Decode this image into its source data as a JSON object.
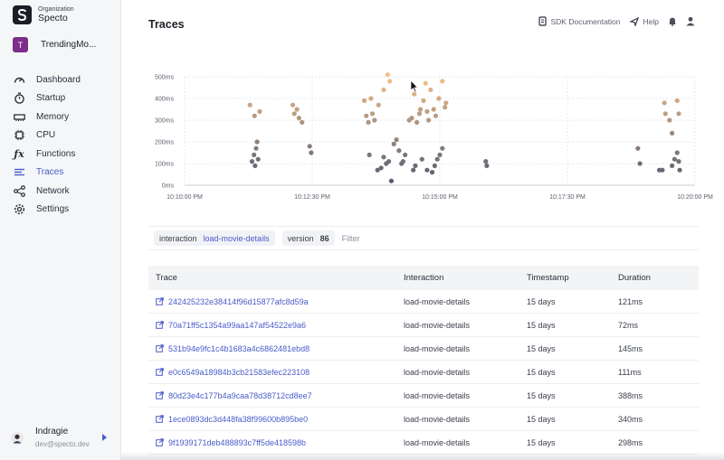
{
  "organization": {
    "caption": "Organization",
    "name": "Specto"
  },
  "app": {
    "initial": "T",
    "name": "TrendingMo..."
  },
  "nav": [
    {
      "label": "Dashboard",
      "icon": "gauge-icon"
    },
    {
      "label": "Startup",
      "icon": "stopwatch-icon"
    },
    {
      "label": "Memory",
      "icon": "memory-icon"
    },
    {
      "label": "CPU",
      "icon": "cpu-icon"
    },
    {
      "label": "Functions",
      "icon": "function-icon"
    },
    {
      "label": "Traces",
      "icon": "list-icon",
      "active": true
    },
    {
      "label": "Network",
      "icon": "network-icon"
    },
    {
      "label": "Settings",
      "icon": "gear-icon"
    }
  ],
  "user": {
    "name": "Indragie",
    "email": "dev@specto.dev"
  },
  "header": {
    "title": "Traces",
    "sdk_docs": "SDK Documentation",
    "help": "Help"
  },
  "filters": {
    "interaction_key": "interaction",
    "interaction_value": "load-movie-details",
    "version_key": "version",
    "version_value": "86",
    "placeholder": "Filter"
  },
  "table": {
    "columns": [
      "Trace",
      "Interaction",
      "Timestamp",
      "Duration"
    ],
    "rows": [
      {
        "trace": "242425232e38414f96d15877afc8d59a",
        "interaction": "load-movie-details",
        "timestamp": "15 days",
        "duration": "121ms"
      },
      {
        "trace": "70a71ff5c1354a99aa147af54522e9a6",
        "interaction": "load-movie-details",
        "timestamp": "15 days",
        "duration": "72ms"
      },
      {
        "trace": "531b94e9fc1c4b1683a4c6862481ebd8",
        "interaction": "load-movie-details",
        "timestamp": "15 days",
        "duration": "145ms"
      },
      {
        "trace": "e0c6549a18984b3cb21583efec223108",
        "interaction": "load-movie-details",
        "timestamp": "15 days",
        "duration": "111ms"
      },
      {
        "trace": "80d23e4c177b4a9caa78d38712cd8ee7",
        "interaction": "load-movie-details",
        "timestamp": "15 days",
        "duration": "388ms"
      },
      {
        "trace": "1ece0893dc3d448fa38f99600b895be0",
        "interaction": "load-movie-details",
        "timestamp": "15 days",
        "duration": "340ms"
      },
      {
        "trace": "9f1939171deb488893c7ff5de418598b",
        "interaction": "load-movie-details",
        "timestamp": "15 days",
        "duration": "298ms"
      }
    ]
  },
  "chart_data": {
    "type": "scatter",
    "title": "",
    "xlabel": "",
    "ylabel": "",
    "x_ticks": [
      "10:10:00 PM",
      "10:12:30 PM",
      "10:15:00 PM",
      "10:17:30 PM",
      "10:20:00 PM"
    ],
    "y_ticks": [
      "0ms",
      "100ms",
      "200ms",
      "300ms",
      "400ms",
      "500ms"
    ],
    "x_domain_minutes": [
      0,
      10
    ],
    "ylim": [
      0,
      500
    ],
    "grid": true,
    "color_low": "#4e5870",
    "color_high": "#f3c08a",
    "points": [
      [
        1.28,
        370
      ],
      [
        1.37,
        320
      ],
      [
        1.47,
        340
      ],
      [
        1.32,
        110
      ],
      [
        1.38,
        90
      ],
      [
        1.36,
        140
      ],
      [
        1.42,
        200
      ],
      [
        1.4,
        170
      ],
      [
        1.44,
        120
      ],
      [
        2.12,
        370
      ],
      [
        2.15,
        330
      ],
      [
        2.2,
        350
      ],
      [
        2.24,
        310
      ],
      [
        2.3,
        290
      ],
      [
        2.45,
        180
      ],
      [
        2.48,
        150
      ],
      [
        3.52,
        390
      ],
      [
        3.56,
        320
      ],
      [
        3.6,
        290
      ],
      [
        3.65,
        400
      ],
      [
        3.68,
        330
      ],
      [
        3.72,
        300
      ],
      [
        3.8,
        370
      ],
      [
        3.9,
        440
      ],
      [
        3.98,
        510
      ],
      [
        4.02,
        480
      ],
      [
        3.62,
        140
      ],
      [
        3.78,
        70
      ],
      [
        3.85,
        80
      ],
      [
        3.9,
        130
      ],
      [
        3.95,
        100
      ],
      [
        4.0,
        110
      ],
      [
        4.05,
        20
      ],
      [
        4.1,
        190
      ],
      [
        4.15,
        210
      ],
      [
        4.2,
        160
      ],
      [
        4.25,
        100
      ],
      [
        4.28,
        110
      ],
      [
        4.32,
        140
      ],
      [
        4.4,
        300
      ],
      [
        4.45,
        310
      ],
      [
        4.5,
        420
      ],
      [
        4.55,
        290
      ],
      [
        4.6,
        330
      ],
      [
        4.62,
        350
      ],
      [
        4.68,
        390
      ],
      [
        4.72,
        470
      ],
      [
        4.75,
        340
      ],
      [
        4.78,
        300
      ],
      [
        4.82,
        440
      ],
      [
        4.88,
        350
      ],
      [
        4.92,
        320
      ],
      [
        4.98,
        400
      ],
      [
        5.05,
        480
      ],
      [
        5.1,
        360
      ],
      [
        5.12,
        380
      ],
      [
        4.48,
        70
      ],
      [
        4.52,
        90
      ],
      [
        4.65,
        120
      ],
      [
        4.75,
        70
      ],
      [
        4.85,
        60
      ],
      [
        4.9,
        90
      ],
      [
        4.95,
        120
      ],
      [
        5.0,
        140
      ],
      [
        5.05,
        170
      ],
      [
        5.9,
        110
      ],
      [
        5.92,
        90
      ],
      [
        8.88,
        170
      ],
      [
        8.92,
        100
      ],
      [
        9.3,
        70
      ],
      [
        9.36,
        70
      ],
      [
        9.55,
        90
      ],
      [
        9.6,
        120
      ],
      [
        9.65,
        150
      ],
      [
        9.7,
        70
      ],
      [
        9.68,
        110
      ],
      [
        9.4,
        380
      ],
      [
        9.42,
        330
      ],
      [
        9.5,
        300
      ],
      [
        9.55,
        240
      ],
      [
        9.65,
        390
      ],
      [
        9.68,
        330
      ]
    ]
  }
}
